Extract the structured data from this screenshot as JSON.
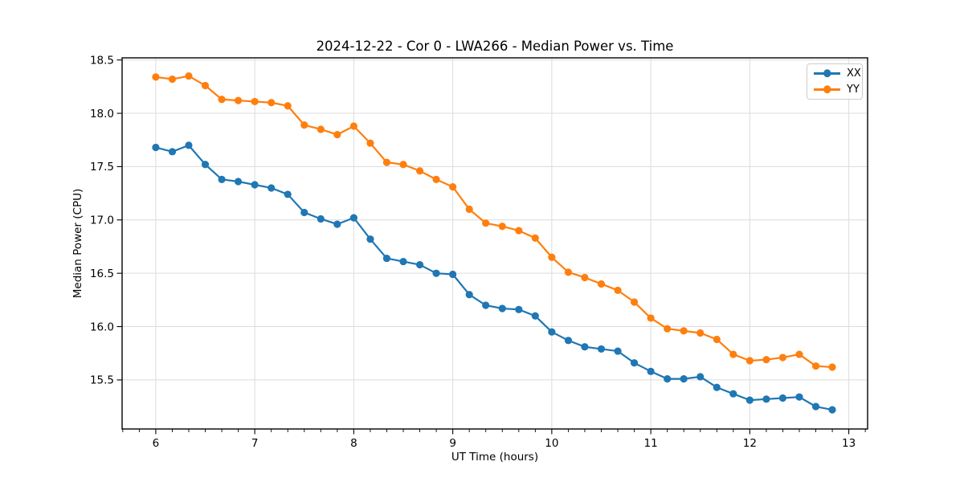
{
  "chart_data": {
    "type": "line",
    "title": "2024-12-22 - Cor 0 - LWA266 - Median Power vs. Time",
    "xlabel": "UT Time (hours)",
    "ylabel": "Median Power (CPU)",
    "xlim": [
      5.66,
      13.19
    ],
    "ylim": [
      15.04,
      18.52
    ],
    "xticks": [
      6,
      7,
      8,
      9,
      10,
      11,
      12,
      13
    ],
    "yticks": [
      15.5,
      16.0,
      16.5,
      17.0,
      17.5,
      18.0,
      18.5
    ],
    "x_minor_tick_step": 0.16667,
    "grid": true,
    "grid_color": "#dcdcdc",
    "legend_position": "upper right",
    "x": [
      6.0,
      6.167,
      6.333,
      6.5,
      6.667,
      6.833,
      7.0,
      7.167,
      7.333,
      7.5,
      7.667,
      7.833,
      8.0,
      8.167,
      8.333,
      8.5,
      8.667,
      8.833,
      9.0,
      9.167,
      9.333,
      9.5,
      9.667,
      9.833,
      10.0,
      10.167,
      10.333,
      10.5,
      10.667,
      10.833,
      11.0,
      11.167,
      11.333,
      11.5,
      11.667,
      11.833,
      12.0,
      12.167,
      12.333,
      12.5,
      12.667,
      12.833
    ],
    "series": [
      {
        "name": "XX",
        "color": "#1f77b4",
        "values": [
          17.68,
          17.64,
          17.7,
          17.52,
          17.38,
          17.36,
          17.33,
          17.3,
          17.24,
          17.07,
          17.01,
          16.96,
          17.02,
          16.82,
          16.64,
          16.61,
          16.58,
          16.5,
          16.49,
          16.3,
          16.2,
          16.17,
          16.16,
          16.1,
          15.95,
          15.87,
          15.81,
          15.79,
          15.77,
          15.66,
          15.58,
          15.51,
          15.51,
          15.53,
          15.43,
          15.37,
          15.31,
          15.32,
          15.33,
          15.34,
          15.25,
          15.22
        ]
      },
      {
        "name": "YY",
        "color": "#ff7f0e",
        "values": [
          18.34,
          18.32,
          18.35,
          18.26,
          18.13,
          18.12,
          18.11,
          18.1,
          18.07,
          17.89,
          17.85,
          17.8,
          17.88,
          17.72,
          17.54,
          17.52,
          17.46,
          17.38,
          17.31,
          17.1,
          16.97,
          16.94,
          16.9,
          16.83,
          16.65,
          16.51,
          16.46,
          16.4,
          16.34,
          16.23,
          16.08,
          15.98,
          15.96,
          15.94,
          15.88,
          15.74,
          15.68,
          15.69,
          15.71,
          15.74,
          15.63,
          15.62
        ]
      }
    ]
  }
}
